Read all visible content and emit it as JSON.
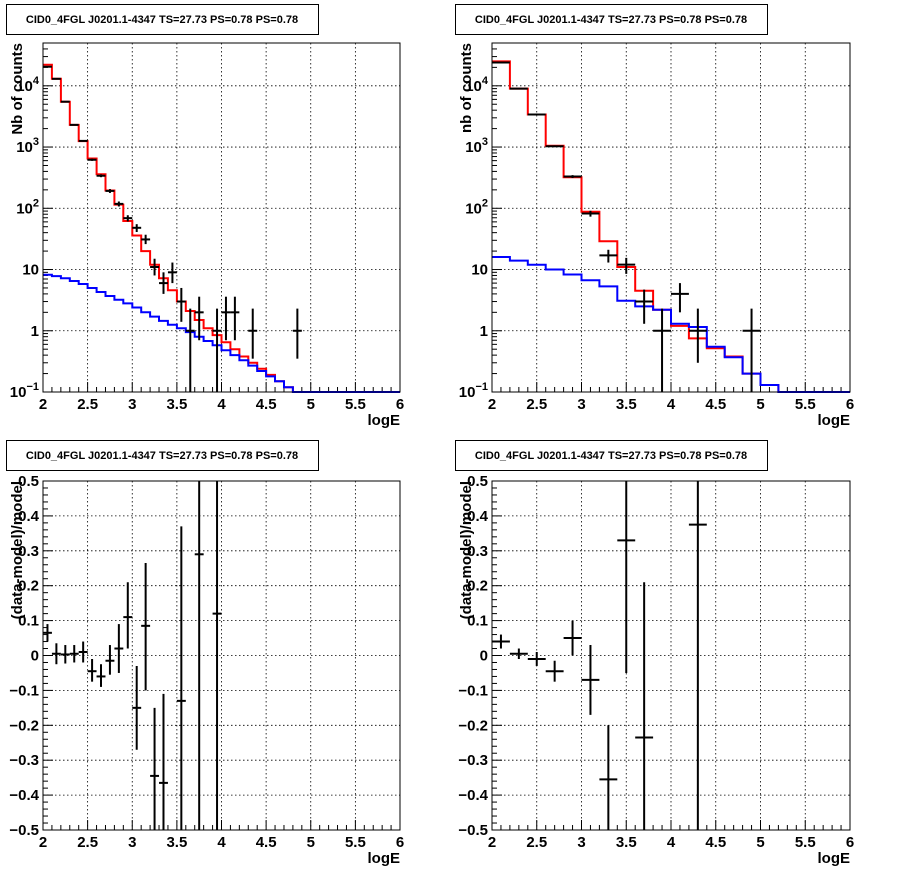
{
  "chart_data": [
    {
      "type": "line",
      "title": "CID0_4FGL J0201.1-4347 TS=27.73 PS=0.78 PS=0.78",
      "xlabel": "logE",
      "ylabel": "Nb of counts",
      "xlim": [
        2,
        6
      ],
      "ylim": [
        0.1,
        50000
      ],
      "yscale": "log",
      "grid": true,
      "xticks": [
        "2",
        "2.5",
        "3",
        "3.5",
        "4",
        "4.5",
        "5",
        "5.5",
        "6"
      ],
      "yticks": [
        {
          "value": 0.1,
          "base": "10",
          "exp": "−1"
        },
        {
          "value": 1,
          "label": "1"
        },
        {
          "value": 10,
          "label": "10"
        },
        {
          "value": 100,
          "base": "10",
          "exp": "2"
        },
        {
          "value": 1000,
          "base": "10",
          "exp": "3"
        },
        {
          "value": 10000,
          "base": "10",
          "exp": "4"
        }
      ],
      "series": [
        {
          "kind": "step",
          "color": "#ff0000",
          "edges": [
            2.0,
            2.1,
            2.2,
            2.3,
            2.4,
            2.5,
            2.6,
            2.7,
            2.8,
            2.9,
            3.0,
            3.1,
            3.2,
            3.3,
            3.4,
            3.5,
            3.6,
            3.7,
            3.8,
            3.9,
            4.0,
            4.1,
            4.2,
            4.3,
            4.4,
            4.5,
            4.6,
            4.7,
            4.8,
            4.9,
            5.0,
            5.1,
            5.2,
            5.3,
            5.4,
            5.5,
            5.6,
            5.7,
            5.8,
            5.9,
            6.0
          ],
          "values": [
            22000,
            13000,
            5500,
            2300,
            1250,
            650,
            360,
            195,
            115,
            62,
            36,
            20,
            12,
            7.2,
            4.6,
            3.0,
            2.1,
            1.5,
            1.1,
            0.85,
            0.65,
            0.5,
            0.38,
            0.3,
            0.24,
            0.19,
            0.15,
            0.12,
            0.1,
            0.1,
            0.1,
            0.1,
            0.1,
            0.1,
            0.1,
            0.1,
            0.1,
            0.1,
            0.1,
            0.1
          ]
        },
        {
          "kind": "step",
          "color": "#0000ff",
          "edges": [
            2.0,
            2.1,
            2.2,
            2.3,
            2.4,
            2.5,
            2.6,
            2.7,
            2.8,
            2.9,
            3.0,
            3.1,
            3.2,
            3.3,
            3.4,
            3.5,
            3.6,
            3.7,
            3.8,
            3.9,
            4.0,
            4.1,
            4.2,
            4.3,
            4.4,
            4.5,
            4.6,
            4.7,
            4.8,
            4.9,
            5.0,
            5.1,
            5.2,
            5.3,
            5.4,
            5.5,
            5.6,
            5.7,
            5.8,
            5.9,
            6.0
          ],
          "values": [
            8.2,
            7.8,
            7.2,
            6.5,
            5.8,
            5.0,
            4.3,
            3.7,
            3.2,
            2.8,
            2.4,
            2.0,
            1.7,
            1.45,
            1.25,
            1.1,
            0.95,
            0.8,
            0.68,
            0.58,
            0.48,
            0.4,
            0.33,
            0.27,
            0.22,
            0.18,
            0.15,
            0.12,
            0.1,
            0.1,
            0.1,
            0.1,
            0.1,
            0.1,
            0.1,
            0.1,
            0.1,
            0.1,
            0.1,
            0.1
          ]
        }
      ],
      "points": [
        {
          "x": 2.05,
          "y": 20500,
          "ylo": 20300,
          "yhi": 20700
        },
        {
          "x": 2.15,
          "y": 13000,
          "ylo": 12900,
          "yhi": 13100
        },
        {
          "x": 2.25,
          "y": 5500,
          "ylo": 5430,
          "yhi": 5570
        },
        {
          "x": 2.35,
          "y": 2300,
          "ylo": 2250,
          "yhi": 2350
        },
        {
          "x": 2.45,
          "y": 1260,
          "ylo": 1225,
          "yhi": 1295
        },
        {
          "x": 2.55,
          "y": 620,
          "ylo": 595,
          "yhi": 645
        },
        {
          "x": 2.65,
          "y": 340,
          "ylo": 322,
          "yhi": 358
        },
        {
          "x": 2.75,
          "y": 192,
          "ylo": 178,
          "yhi": 206
        },
        {
          "x": 2.85,
          "y": 118,
          "ylo": 107,
          "yhi": 129
        },
        {
          "x": 2.95,
          "y": 69,
          "ylo": 61,
          "yhi": 77
        },
        {
          "x": 3.05,
          "y": 48,
          "ylo": 41,
          "yhi": 55
        },
        {
          "x": 3.15,
          "y": 31,
          "ylo": 26,
          "yhi": 37
        },
        {
          "x": 3.25,
          "y": 11,
          "ylo": 8,
          "yhi": 15
        },
        {
          "x": 3.35,
          "y": 6,
          "ylo": 4,
          "yhi": 9
        },
        {
          "x": 3.45,
          "y": 9,
          "ylo": 6,
          "yhi": 13
        },
        {
          "x": 3.55,
          "y": 3,
          "ylo": 1.4,
          "yhi": 5
        },
        {
          "x": 3.65,
          "y": 1,
          "ylo": 0.1,
          "yhi": 2.3
        },
        {
          "x": 3.75,
          "y": 2,
          "ylo": 0.7,
          "yhi": 3.6
        },
        {
          "x": 3.95,
          "y": 1,
          "ylo": 0.1,
          "yhi": 2.3
        },
        {
          "x": 4.05,
          "y": 2,
          "ylo": 0.7,
          "yhi": 3.6
        },
        {
          "x": 4.15,
          "y": 2,
          "ylo": 0.7,
          "yhi": 3.6
        },
        {
          "x": 4.35,
          "y": 1,
          "ylo": 0.35,
          "yhi": 2.3
        },
        {
          "x": 4.85,
          "y": 1,
          "ylo": 0.35,
          "yhi": 2.3
        }
      ],
      "xerr": 0.05
    },
    {
      "type": "line",
      "title": "CID0_4FGL J0201.1-4347 TS=27.73 PS=0.78 PS=0.78",
      "xlabel": "logE",
      "ylabel": "nb of counts",
      "xlim": [
        2,
        6
      ],
      "ylim": [
        0.1,
        50000
      ],
      "yscale": "log",
      "grid": true,
      "xticks": [
        "2",
        "2.5",
        "3",
        "3.5",
        "4",
        "4.5",
        "5",
        "5.5",
        "6"
      ],
      "yticks": [
        {
          "value": 0.1,
          "base": "10",
          "exp": "−1"
        },
        {
          "value": 1,
          "label": "1"
        },
        {
          "value": 10,
          "label": "10"
        },
        {
          "value": 100,
          "base": "10",
          "exp": "2"
        },
        {
          "value": 1000,
          "base": "10",
          "exp": "3"
        },
        {
          "value": 10000,
          "base": "10",
          "exp": "4"
        }
      ],
      "series": [
        {
          "kind": "step",
          "color": "#ff0000",
          "edges": [
            2.0,
            2.2,
            2.4,
            2.6,
            2.8,
            3.0,
            3.2,
            3.4,
            3.6,
            3.8,
            4.0,
            4.2,
            4.4,
            4.6,
            4.8,
            5.0,
            5.2,
            5.4,
            5.6,
            5.8,
            6.0
          ],
          "values": [
            25000,
            9000,
            3400,
            1050,
            320,
            88,
            29,
            11,
            4.5,
            2.2,
            1.2,
            0.75,
            0.52,
            0.38,
            0.2,
            0.13,
            0.1,
            0.1,
            0.1,
            0.1
          ]
        },
        {
          "kind": "step",
          "color": "#0000ff",
          "edges": [
            2.0,
            2.2,
            2.4,
            2.6,
            2.8,
            3.0,
            3.2,
            3.4,
            3.6,
            3.8,
            4.0,
            4.2,
            4.4,
            4.6,
            4.8,
            5.0,
            5.2,
            5.4,
            5.6,
            5.8,
            6.0
          ],
          "values": [
            16,
            14,
            12,
            10,
            8.3,
            6.7,
            5.3,
            3.1,
            2.5,
            2.2,
            1.3,
            1.15,
            0.55,
            0.37,
            0.2,
            0.13,
            0.1,
            0.1,
            0.1,
            0.1
          ]
        }
      ],
      "points": [
        {
          "x": 2.1,
          "y": 24000,
          "ylo": 23800,
          "yhi": 24200
        },
        {
          "x": 2.3,
          "y": 9000,
          "ylo": 8900,
          "yhi": 9100
        },
        {
          "x": 2.5,
          "y": 3400,
          "ylo": 3340,
          "yhi": 3460
        },
        {
          "x": 2.7,
          "y": 1030,
          "ylo": 998,
          "yhi": 1062
        },
        {
          "x": 2.9,
          "y": 330,
          "ylo": 312,
          "yhi": 348
        },
        {
          "x": 3.1,
          "y": 82,
          "ylo": 73,
          "yhi": 91
        },
        {
          "x": 3.3,
          "y": 17,
          "ylo": 13,
          "yhi": 21
        },
        {
          "x": 3.5,
          "y": 12,
          "ylo": 8.5,
          "yhi": 15.5
        },
        {
          "x": 3.7,
          "y": 3,
          "ylo": 1.3,
          "yhi": 4.7
        },
        {
          "x": 3.9,
          "y": 1,
          "ylo": 0.1,
          "yhi": 2.3
        },
        {
          "x": 4.1,
          "y": 4,
          "ylo": 2,
          "yhi": 6
        },
        {
          "x": 4.3,
          "y": 1,
          "ylo": 0.3,
          "yhi": 2.3
        },
        {
          "x": 4.9,
          "y": 1,
          "ylo": 0.1,
          "yhi": 2.3
        }
      ],
      "xerr": 0.1
    },
    {
      "type": "scatter",
      "title": "CID0_4FGL J0201.1-4347 TS=27.73 PS=0.78 PS=0.78",
      "xlabel": "logE",
      "ylabel": "(data-model)/model",
      "xlim": [
        2,
        6
      ],
      "ylim": [
        -0.5,
        0.5
      ],
      "yscale": "linear",
      "grid": true,
      "xticks": [
        "2",
        "2.5",
        "3",
        "3.5",
        "4",
        "4.5",
        "5",
        "5.5",
        "6"
      ],
      "yticklabels": [
        "−0.5",
        "−0.4",
        "−0.3",
        "−0.2",
        "−0.1",
        "0",
        "0.1",
        "0.2",
        "0.3",
        "0.4",
        "0.5"
      ],
      "points": [
        {
          "x": 2.05,
          "y": 0.065,
          "ylo": 0.04,
          "yhi": 0.09
        },
        {
          "x": 2.15,
          "y": 0.005,
          "ylo": -0.025,
          "yhi": 0.035
        },
        {
          "x": 2.25,
          "y": 0.003,
          "ylo": -0.023,
          "yhi": 0.03
        },
        {
          "x": 2.35,
          "y": 0.005,
          "ylo": -0.02,
          "yhi": 0.03
        },
        {
          "x": 2.45,
          "y": 0.01,
          "ylo": -0.02,
          "yhi": 0.04
        },
        {
          "x": 2.55,
          "y": -0.045,
          "ylo": -0.075,
          "yhi": -0.01
        },
        {
          "x": 2.65,
          "y": -0.06,
          "ylo": -0.09,
          "yhi": -0.025
        },
        {
          "x": 2.75,
          "y": -0.015,
          "ylo": -0.055,
          "yhi": 0.03
        },
        {
          "x": 2.85,
          "y": 0.02,
          "ylo": -0.05,
          "yhi": 0.09
        },
        {
          "x": 2.95,
          "y": 0.11,
          "ylo": 0.02,
          "yhi": 0.21
        },
        {
          "x": 3.05,
          "y": -0.15,
          "ylo": -0.27,
          "yhi": -0.03
        },
        {
          "x": 3.15,
          "y": 0.085,
          "ylo": -0.1,
          "yhi": 0.265
        },
        {
          "x": 3.25,
          "y": -0.345,
          "ylo": -0.5,
          "yhi": -0.15
        },
        {
          "x": 3.35,
          "y": -0.365,
          "ylo": -0.5,
          "yhi": -0.11
        },
        {
          "x": 3.55,
          "y": -0.13,
          "ylo": -0.5,
          "yhi": 0.37
        },
        {
          "x": 3.75,
          "y": 0.29,
          "ylo": -0.5,
          "yhi": 0.5
        },
        {
          "x": 3.95,
          "y": 0.12,
          "ylo": -0.5,
          "yhi": 0.5
        }
      ],
      "xerr": 0.05
    },
    {
      "type": "scatter",
      "title": "CID0_4FGL J0201.1-4347 TS=27.73 PS=0.78 PS=0.78",
      "xlabel": "logE",
      "ylabel": "(data-model)/model",
      "xlim": [
        2,
        6
      ],
      "ylim": [
        -0.5,
        0.5
      ],
      "yscale": "linear",
      "grid": true,
      "xticks": [
        "2",
        "2.5",
        "3",
        "3.5",
        "4",
        "4.5",
        "5",
        "5.5",
        "6"
      ],
      "yticklabels": [
        "−0.5",
        "−0.4",
        "−0.3",
        "−0.2",
        "−0.1",
        "0",
        "0.1",
        "0.2",
        "0.3",
        "0.4",
        "0.5"
      ],
      "points": [
        {
          "x": 2.1,
          "y": 0.04,
          "ylo": 0.02,
          "yhi": 0.06
        },
        {
          "x": 2.3,
          "y": 0.005,
          "ylo": -0.01,
          "yhi": 0.02
        },
        {
          "x": 2.5,
          "y": -0.01,
          "ylo": -0.03,
          "yhi": 0.01
        },
        {
          "x": 2.7,
          "y": -0.045,
          "ylo": -0.075,
          "yhi": -0.015
        },
        {
          "x": 2.9,
          "y": 0.05,
          "ylo": 0.0,
          "yhi": 0.1
        },
        {
          "x": 3.1,
          "y": -0.07,
          "ylo": -0.17,
          "yhi": 0.03
        },
        {
          "x": 3.3,
          "y": -0.355,
          "ylo": -0.5,
          "yhi": -0.2
        },
        {
          "x": 3.5,
          "y": 0.33,
          "ylo": -0.05,
          "yhi": 0.5
        },
        {
          "x": 3.7,
          "y": -0.235,
          "ylo": -0.5,
          "yhi": 0.21
        },
        {
          "x": 4.3,
          "y": 0.375,
          "ylo": -0.5,
          "yhi": 0.5
        }
      ],
      "xerr": 0.1
    }
  ]
}
